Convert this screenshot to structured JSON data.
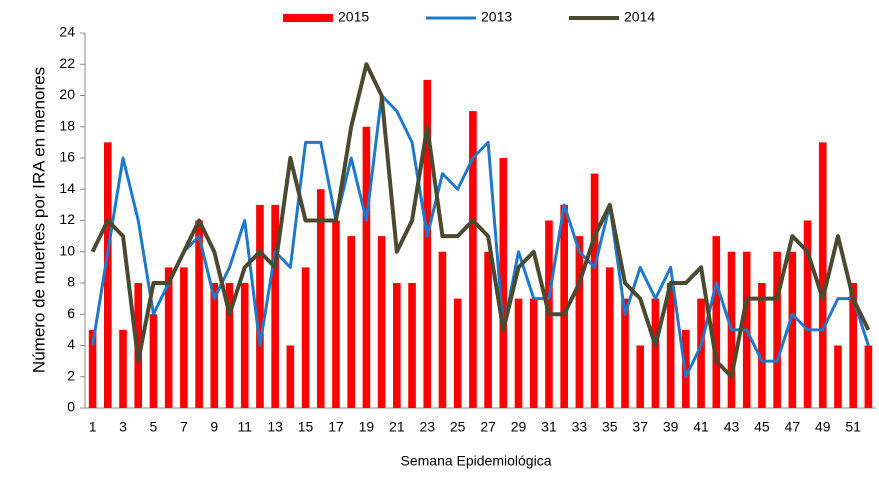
{
  "chart_data": {
    "type": "bar_line",
    "x_label": "Semana Epidemiológica",
    "y_label": "Número  de muertes por IRA en menores",
    "categories": [
      "1",
      null,
      "3",
      null,
      "5",
      null,
      "7",
      null,
      "9",
      null,
      "11",
      null,
      "13",
      null,
      "15",
      null,
      "17",
      null,
      "19",
      null,
      "21",
      null,
      "23",
      null,
      "25",
      null,
      "27",
      null,
      "29",
      null,
      "31",
      null,
      "33",
      null,
      "35",
      null,
      "37",
      null,
      "39",
      null,
      "41",
      null,
      "43",
      null,
      "45",
      null,
      "47",
      null,
      "49",
      null,
      "51",
      null
    ],
    "ylim": [
      0,
      24
    ],
    "yticks": [
      0,
      2,
      4,
      6,
      8,
      10,
      12,
      14,
      16,
      18,
      20,
      22,
      24
    ],
    "series": [
      {
        "name": "2015",
        "type": "bar",
        "color": "#ff0000",
        "values": [
          5,
          17,
          5,
          8,
          6,
          9,
          9,
          12,
          8,
          8,
          8,
          13,
          13,
          4,
          9,
          14,
          12,
          11,
          18,
          11,
          8,
          8,
          21,
          10,
          7,
          19,
          10,
          16,
          7,
          7,
          12,
          13,
          11,
          15,
          9,
          7,
          4,
          7,
          8,
          5,
          7,
          11,
          10,
          10,
          8,
          10,
          10,
          12,
          17,
          4,
          8,
          4
        ]
      },
      {
        "name": "2013",
        "type": "line",
        "color": "#1f78c8",
        "values": [
          4,
          10,
          16,
          12,
          6,
          8,
          10,
          11,
          7,
          9,
          12,
          4,
          10,
          9,
          17,
          17,
          12,
          16,
          12,
          20,
          19,
          17,
          11,
          15,
          14,
          16,
          17,
          5,
          10,
          7,
          7,
          13,
          10,
          9,
          13,
          6,
          9,
          7,
          9,
          2,
          4,
          8,
          5,
          5,
          3,
          3,
          6,
          5,
          5,
          7,
          7,
          4
        ]
      },
      {
        "name": "2014",
        "type": "line",
        "color": "#4a4a30",
        "values": [
          10,
          12,
          11,
          3,
          8,
          8,
          10,
          12,
          10,
          6,
          9,
          10,
          9,
          16,
          12,
          12,
          12,
          18,
          22,
          20,
          10,
          12,
          18,
          11,
          11,
          12,
          11,
          5,
          9,
          10,
          6,
          6,
          8,
          11,
          13,
          8,
          7,
          4,
          8,
          8,
          9,
          3,
          2,
          7,
          7,
          7,
          11,
          10,
          7,
          11,
          7,
          5
        ]
      }
    ]
  }
}
